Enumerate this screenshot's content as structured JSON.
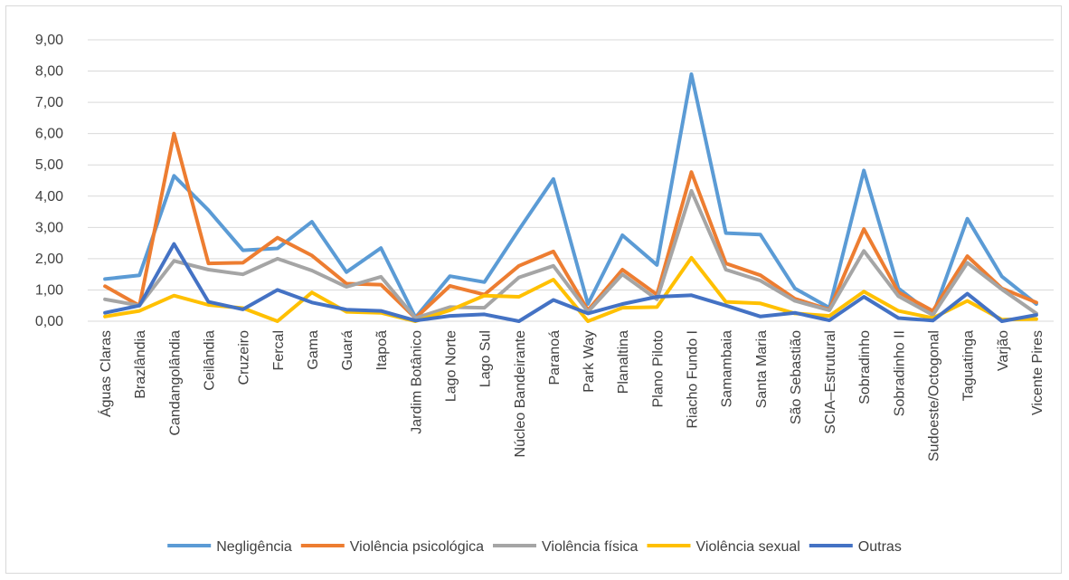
{
  "chart_data": {
    "type": "line",
    "title": "",
    "xlabel": "",
    "ylabel": "",
    "ylim": [
      0,
      9
    ],
    "y_ticks": [
      "0,00",
      "1,00",
      "2,00",
      "3,00",
      "4,00",
      "5,00",
      "6,00",
      "7,00",
      "8,00",
      "9,00"
    ],
    "grid": "horizontal",
    "legend_position": "bottom",
    "categories": [
      "Águas Claras",
      "Brazlândia",
      "Candangolândia",
      "Ceilândia",
      "Cruzeiro",
      "Fercal",
      "Gama",
      "Guará",
      "Itapoã",
      "Jardim Botânico",
      "Lago Norte",
      "Lago Sul",
      "Núcleo Bandeirante",
      "Paranoá",
      "Park Way",
      "Planaltina",
      "Plano Piloto",
      "Riacho Fundo I",
      "Samambaia",
      "Santa Maria",
      "São Sebastião",
      "SCIA–Estrutural",
      "Sobradinho",
      "Sobradinho II",
      "Sudoeste/Octogonal",
      "Taguatinga",
      "Varjão",
      "Vicente Pires"
    ],
    "series": [
      {
        "name": "Negligência",
        "color": "#5B9BD5",
        "values": [
          1.35,
          1.47,
          4.65,
          3.55,
          2.27,
          2.33,
          3.18,
          1.57,
          2.34,
          0.12,
          1.44,
          1.25,
          2.93,
          4.55,
          0.55,
          2.75,
          1.8,
          7.9,
          2.82,
          2.77,
          1.05,
          0.43,
          4.82,
          1.05,
          0.2,
          3.28,
          1.43,
          0.55
        ]
      },
      {
        "name": "Violência psicológica",
        "color": "#ED7D31",
        "values": [
          1.12,
          0.5,
          6.0,
          1.85,
          1.87,
          2.67,
          2.1,
          1.2,
          1.17,
          0.1,
          1.13,
          0.85,
          1.77,
          2.23,
          0.35,
          1.65,
          0.85,
          4.77,
          1.85,
          1.47,
          0.72,
          0.37,
          2.95,
          0.93,
          0.33,
          2.08,
          1.05,
          0.6
        ]
      },
      {
        "name": "Violência física",
        "color": "#A5A5A5",
        "values": [
          0.7,
          0.5,
          1.93,
          1.65,
          1.5,
          2.0,
          1.62,
          1.1,
          1.42,
          0.1,
          0.45,
          0.43,
          1.4,
          1.77,
          0.3,
          1.5,
          0.7,
          4.17,
          1.65,
          1.3,
          0.65,
          0.35,
          2.25,
          0.8,
          0.2,
          1.87,
          1.02,
          0.25
        ]
      },
      {
        "name": "Violência sexual",
        "color": "#FFC000",
        "values": [
          0.15,
          0.33,
          0.82,
          0.52,
          0.42,
          0.0,
          0.92,
          0.3,
          0.27,
          0.0,
          0.35,
          0.82,
          0.78,
          1.33,
          0.0,
          0.43,
          0.45,
          2.03,
          0.62,
          0.57,
          0.25,
          0.17,
          0.95,
          0.33,
          0.1,
          0.65,
          0.05,
          0.07
        ]
      },
      {
        "name": "Outras",
        "color": "#4472C4",
        "values": [
          0.27,
          0.5,
          2.47,
          0.62,
          0.38,
          1.0,
          0.6,
          0.37,
          0.33,
          0.02,
          0.17,
          0.22,
          0.0,
          0.68,
          0.25,
          0.55,
          0.78,
          0.83,
          0.5,
          0.15,
          0.27,
          0.03,
          0.78,
          0.1,
          0.02,
          0.88,
          0.0,
          0.2
        ]
      }
    ]
  }
}
